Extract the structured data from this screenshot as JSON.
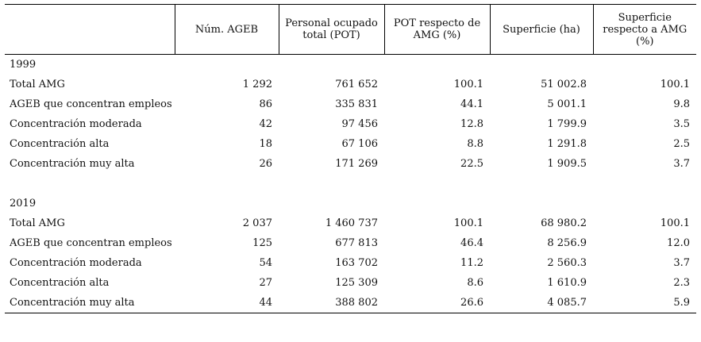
{
  "table": {
    "headers": {
      "col1": "",
      "col2": "Núm. AGEB",
      "col3": "Personal ocupado total (POT)",
      "col4": "POT respecto de AMG (%)",
      "col5": "Superficie (ha)",
      "col6": "Superficie respecto a AMG (%)"
    },
    "sections": [
      {
        "year": "1999",
        "rows": [
          {
            "label": "Total AMG",
            "ageb": "1 292",
            "pot": "761 652",
            "pot_pct": "100.1",
            "sup": "51 002.8",
            "sup_pct": "100.1"
          },
          {
            "label": "AGEB que concentran empleos",
            "ageb": "86",
            "pot": "335 831",
            "pot_pct": "44.1",
            "sup": "5 001.1",
            "sup_pct": "9.8"
          },
          {
            "label": "Concentración moderada",
            "ageb": "42",
            "pot": "97 456",
            "pot_pct": "12.8",
            "sup": "1 799.9",
            "sup_pct": "3.5"
          },
          {
            "label": "Concentración alta",
            "ageb": "18",
            "pot": "67 106",
            "pot_pct": "8.8",
            "sup": "1 291.8",
            "sup_pct": "2.5"
          },
          {
            "label": "Concentración muy alta",
            "ageb": "26",
            "pot": "171 269",
            "pot_pct": "22.5",
            "sup": "1 909.5",
            "sup_pct": "3.7"
          }
        ]
      },
      {
        "year": "2019",
        "rows": [
          {
            "label": "Total AMG",
            "ageb": "2 037",
            "pot": "1 460 737",
            "pot_pct": "100.1",
            "sup": "68 980.2",
            "sup_pct": "100.1"
          },
          {
            "label": "AGEB que concentran empleos",
            "ageb": "125",
            "pot": "677 813",
            "pot_pct": "46.4",
            "sup": "8 256.9",
            "sup_pct": "12.0"
          },
          {
            "label": "Concentración moderada",
            "ageb": "54",
            "pot": "163 702",
            "pot_pct": "11.2",
            "sup": "2 560.3",
            "sup_pct": "3.7"
          },
          {
            "label": "Concentración alta",
            "ageb": "27",
            "pot": "125 309",
            "pot_pct": "8.6",
            "sup": "1 610.9",
            "sup_pct": "2.3"
          },
          {
            "label": "Concentración muy alta",
            "ageb": "44",
            "pot": "388 802",
            "pot_pct": "26.6",
            "sup": "4 085.7",
            "sup_pct": "5.9"
          }
        ]
      }
    ]
  }
}
